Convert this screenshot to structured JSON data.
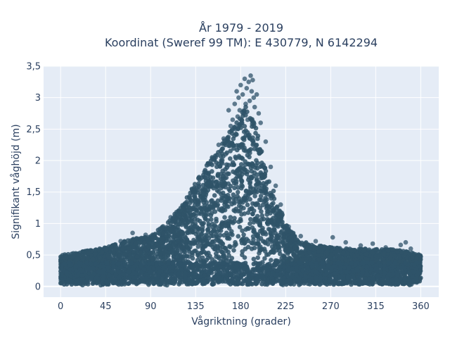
{
  "colors": {
    "background": "#ffffff",
    "plot_bg": "#e5ecf6",
    "grid": "#ffffff",
    "marker": "#2f5369",
    "text": "#2a3f5f"
  },
  "chart_data": {
    "type": "scatter",
    "title": "År 1979 - 2019",
    "subtitle": "Koordinat (Sweref 99 TM): E 430779, N 6142294",
    "xlabel": "Vågriktning (grader)",
    "ylabel": "Signifikant våghöjd (m)",
    "xlim": [
      -17,
      378
    ],
    "ylim": [
      -0.17,
      3.5
    ],
    "x_ticks": [
      0,
      45,
      90,
      135,
      180,
      225,
      270,
      315,
      360
    ],
    "y_ticks": [
      0,
      0.5,
      1,
      1.5,
      2,
      2.5,
      3,
      3.5
    ],
    "x_tick_labels": [
      "0",
      "45",
      "90",
      "135",
      "180",
      "225",
      "270",
      "315",
      "360"
    ],
    "y_tick_labels": [
      "0",
      "0,5",
      "1",
      "1,5",
      "2",
      "2,5",
      "3",
      "3,5"
    ],
    "grid": true,
    "legend": "none",
    "envelope": {
      "x": [
        0,
        20,
        45,
        70,
        90,
        105,
        120,
        135,
        150,
        160,
        170,
        180,
        185,
        190,
        195,
        200,
        210,
        225,
        240,
        255,
        270,
        290,
        315,
        340,
        360
      ],
      "y_max": [
        0.5,
        0.55,
        0.62,
        0.75,
        0.8,
        1.0,
        1.25,
        1.65,
        2.05,
        2.25,
        2.5,
        2.7,
        2.9,
        2.7,
        2.55,
        2.25,
        1.65,
        1.0,
        0.72,
        0.66,
        0.62,
        0.6,
        0.6,
        0.58,
        0.5
      ]
    },
    "outliers": {
      "x": [
        60,
        72,
        85,
        110,
        124,
        132,
        138,
        145,
        150,
        155,
        158,
        163,
        165,
        168,
        170,
        172,
        174,
        175,
        176,
        177,
        178,
        179,
        180,
        181,
        182,
        183,
        184,
        185,
        186,
        187,
        188,
        189,
        190,
        191,
        192,
        193,
        194,
        196,
        198,
        200,
        205,
        210,
        215,
        220,
        228,
        240,
        255,
        272,
        285,
        300,
        312,
        325,
        340,
        345,
        350
      ],
      "y": [
        0.72,
        0.85,
        0.82,
        1.1,
        1.3,
        1.45,
        1.6,
        1.8,
        1.95,
        2.05,
        2.25,
        2.35,
        2.1,
        2.8,
        2.55,
        2.65,
        2.9,
        2.5,
        3.1,
        2.7,
        3.0,
        2.8,
        3.2,
        2.6,
        3.05,
        2.75,
        3.3,
        2.9,
        3.15,
        2.65,
        3.25,
        2.95,
        3.35,
        3.1,
        3.28,
        3.0,
        2.85,
        3.05,
        2.75,
        2.6,
        2.3,
        1.9,
        1.6,
        1.3,
        0.95,
        0.8,
        0.72,
        0.78,
        0.7,
        0.65,
        0.68,
        0.62,
        0.66,
        0.7,
        0.6
      ]
    }
  }
}
